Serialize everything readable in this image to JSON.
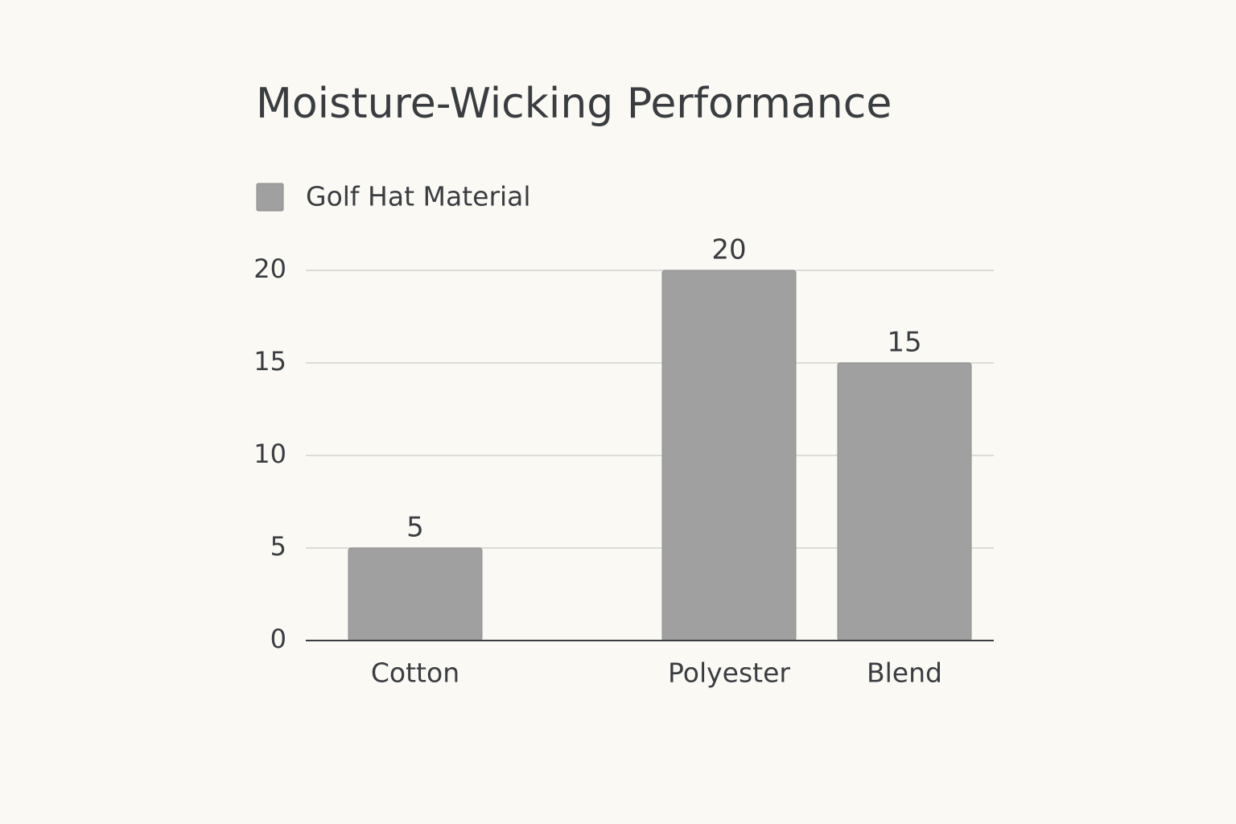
{
  "chart_data": {
    "type": "bar",
    "title": "Moisture-Wicking Performance",
    "categories": [
      "Cotton",
      "Polyester",
      "Blend"
    ],
    "series": [
      {
        "name": "Golf Hat Material",
        "color": "#a0a0a0",
        "values": [
          5,
          20,
          15
        ]
      }
    ],
    "ylim": [
      0,
      20
    ],
    "yticks": [
      0,
      5,
      10,
      15,
      20
    ],
    "grid": true,
    "legend": "top-left"
  }
}
